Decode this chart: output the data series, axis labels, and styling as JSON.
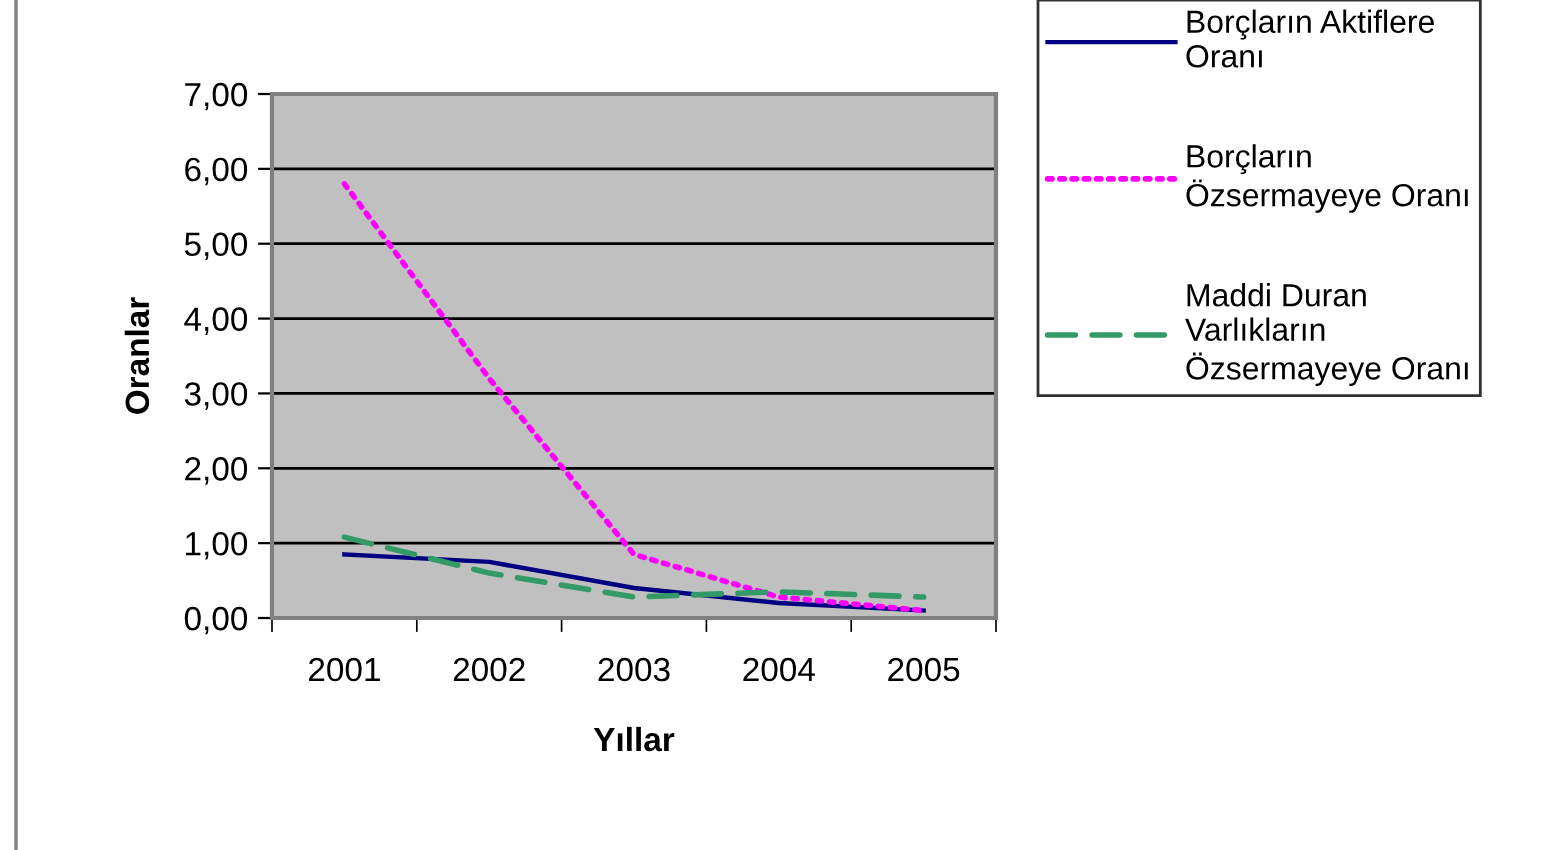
{
  "chart_data": {
    "type": "line",
    "xlabel": "Yıllar",
    "ylabel": "Oranlar",
    "categories": [
      "2001",
      "2002",
      "2003",
      "2004",
      "2005"
    ],
    "series": [
      {
        "name": "Borçların Aktiflere Oranı",
        "color": "#000080",
        "line_style": "solid",
        "values": [
          0.85,
          0.75,
          0.4,
          0.2,
          0.1
        ]
      },
      {
        "name": "Borçların Özsermayeye Oranı",
        "color": "#ff00ff",
        "line_style": "dotted",
        "values": [
          5.8,
          3.2,
          0.85,
          0.28,
          0.1
        ]
      },
      {
        "name": "Maddi Duran Varlıkların Özsermayeye Oranı",
        "color": "#339966",
        "line_style": "dashed",
        "values": [
          1.08,
          0.6,
          0.28,
          0.35,
          0.28
        ]
      }
    ],
    "ylim": [
      0,
      7
    ],
    "yticks": [
      {
        "value": 0,
        "label": "0,00"
      },
      {
        "value": 1,
        "label": "1,00"
      },
      {
        "value": 2,
        "label": "2,00"
      },
      {
        "value": 3,
        "label": "3,00"
      },
      {
        "value": 4,
        "label": "4,00"
      },
      {
        "value": 5,
        "label": "5,00"
      },
      {
        "value": 6,
        "label": "6,00"
      },
      {
        "value": 7,
        "label": "7,00"
      }
    ],
    "grid": "y",
    "legend": "right",
    "marker": "none"
  }
}
